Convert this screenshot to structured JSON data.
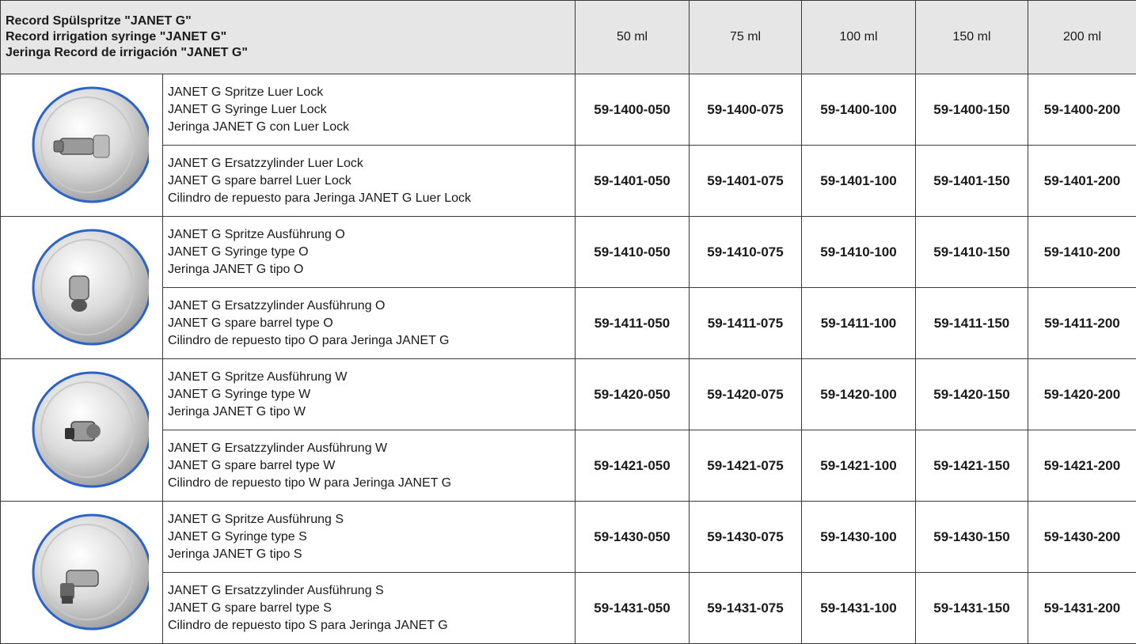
{
  "header": {
    "title_lines": [
      "Record Spülspritze \"JANET G\"",
      "Record irrigation syringe \"JANET G\"",
      "Jeringa Record de irrigación \"JANET G\""
    ],
    "sizes": [
      "50 ml",
      "75 ml",
      "100 ml",
      "150 ml",
      "200 ml"
    ]
  },
  "groups": [
    {
      "image": "syringe-luer-lock-icon",
      "rows": [
        {
          "desc": [
            "JANET G Spritze Luer Lock",
            "JANET G Syringe Luer Lock",
            "Jeringa JANET G con Luer Lock"
          ],
          "codes": [
            "59-1400-050",
            "59-1400-075",
            "59-1400-100",
            "59-1400-150",
            "59-1400-200"
          ]
        },
        {
          "desc": [
            "JANET G Ersatzzylinder  Luer Lock",
            "JANET G spare barrel Luer Lock",
            "Cilindro de repuesto para Jeringa JANET G Luer Lock"
          ],
          "codes": [
            "59-1401-050",
            "59-1401-075",
            "59-1401-100",
            "59-1401-150",
            "59-1401-200"
          ]
        }
      ]
    },
    {
      "image": "syringe-type-o-icon",
      "rows": [
        {
          "desc": [
            "JANET G Spritze Ausführung O",
            "JANET G Syringe type O",
            "Jeringa JANET G tipo O"
          ],
          "codes": [
            "59-1410-050",
            "59-1410-075",
            "59-1410-100",
            "59-1410-150",
            "59-1410-200"
          ]
        },
        {
          "desc": [
            "JANET G Ersatzzylinder Ausführung O",
            "JANET G spare barrel type O",
            "Cilindro de repuesto tipo O para Jeringa JANET G"
          ],
          "codes": [
            "59-1411-050",
            "59-1411-075",
            "59-1411-100",
            "59-1411-150",
            "59-1411-200"
          ]
        }
      ]
    },
    {
      "image": "syringe-type-w-icon",
      "rows": [
        {
          "desc": [
            "JANET G Spritze Ausführung W",
            "JANET G Syringe type W",
            "Jeringa JANET G tipo W"
          ],
          "codes": [
            "59-1420-050",
            "59-1420-075",
            "59-1420-100",
            "59-1420-150",
            "59-1420-200"
          ]
        },
        {
          "desc": [
            "JANET G Ersatzzylinder Ausführung W",
            "JANET G spare barrel type W",
            "Cilindro de repuesto tipo W para Jeringa JANET G"
          ],
          "codes": [
            "59-1421-050",
            "59-1421-075",
            "59-1421-100",
            "59-1421-150",
            "59-1421-200"
          ]
        }
      ]
    },
    {
      "image": "syringe-type-s-icon",
      "rows": [
        {
          "desc": [
            "JANET G Spritze Ausführung S",
            "JANET G Syringe type S",
            "Jeringa JANET G tipo S"
          ],
          "codes": [
            "59-1430-050",
            "59-1430-075",
            "59-1430-100",
            "59-1430-150",
            "59-1430-200"
          ]
        },
        {
          "desc": [
            "JANET G Ersatzzylinder Ausführung S",
            "JANET G spare barrel type S",
            "Cilindro de repuesto tipo S para Jeringa JANET G"
          ],
          "codes": [
            "59-1431-050",
            "59-1431-075",
            "59-1431-100",
            "59-1431-150",
            "59-1431-200"
          ]
        }
      ]
    }
  ]
}
